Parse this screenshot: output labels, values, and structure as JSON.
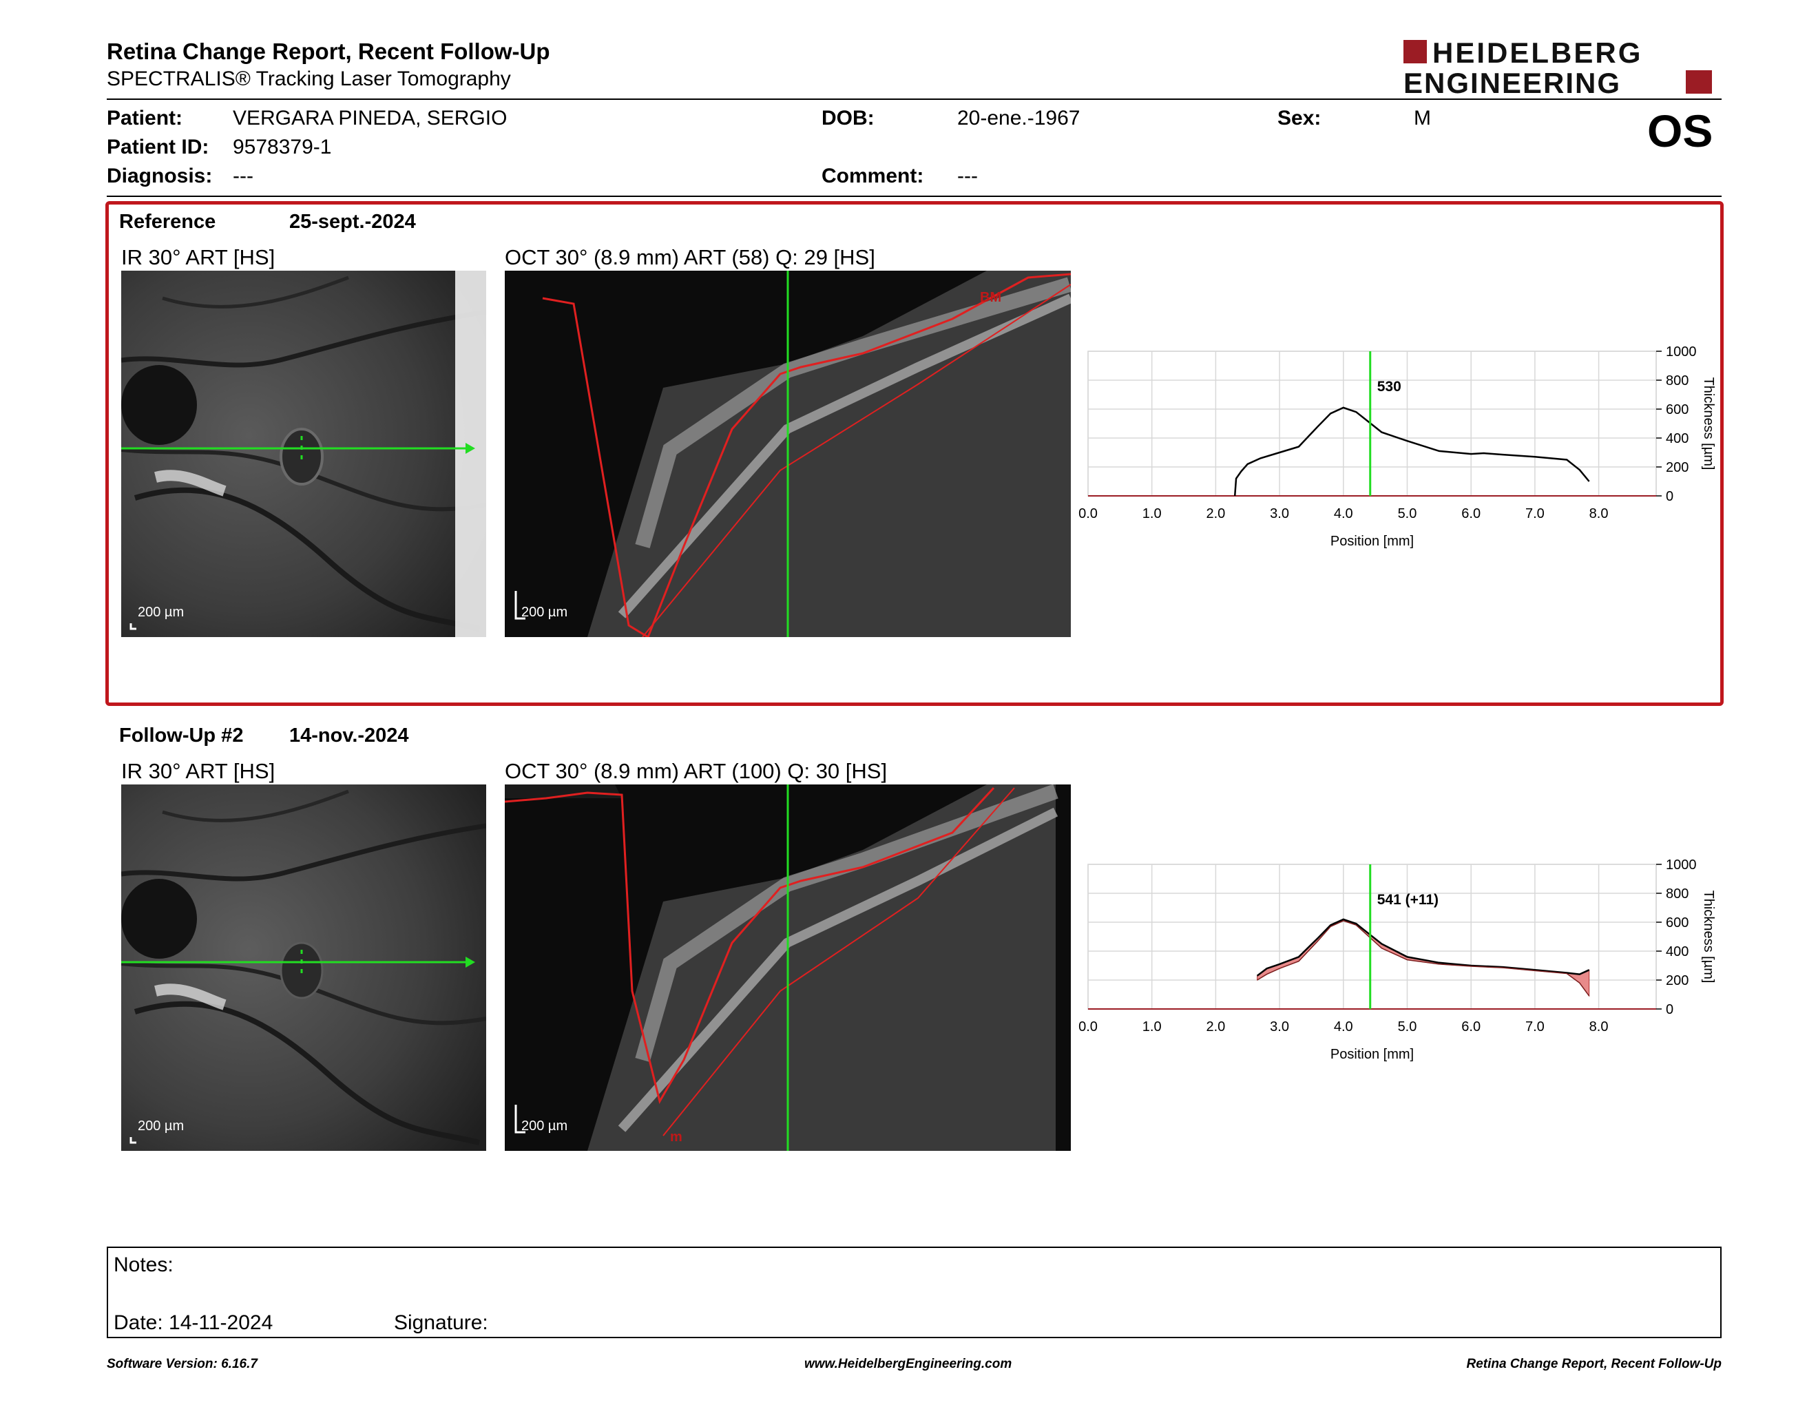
{
  "header": {
    "title": "Retina Change Report, Recent Follow-Up",
    "subtitle": "SPECTRALIS® Tracking Laser Tomography",
    "logo_line1": "HEIDELBERG",
    "logo_line2": "ENGINEERING",
    "eye": "OS"
  },
  "patient": {
    "name_label": "Patient:",
    "name": "VERGARA PINEDA, SERGIO",
    "id_label": "Patient ID:",
    "id": "9578379-1",
    "diagnosis_label": "Diagnosis:",
    "diagnosis": "---",
    "dob_label": "DOB:",
    "dob": "20-ene.-1967",
    "comment_label": "Comment:",
    "comment": "---",
    "sex_label": "Sex:",
    "sex": "M"
  },
  "reference": {
    "label": "Reference",
    "date": "25-sept.-2024",
    "ir_caption": "IR 30° ART [HS]",
    "oct_caption": "OCT 30° (8.9 mm) ART (58) Q: 29 [HS]",
    "ir_scale": "200 µm",
    "oct_scale": "200 µm",
    "oct_tag": "BM"
  },
  "followup": {
    "label": "Follow-Up #2",
    "date": "14-nov.-2024",
    "ir_caption": "IR 30° ART [HS]",
    "oct_caption": "OCT 30° (8.9 mm) ART (100) Q: 30 [HS]",
    "ir_scale": "200 µm",
    "oct_scale": "200 µm",
    "oct_tag": "m"
  },
  "colors": {
    "accent_red": "#c0171d",
    "cursor_green": "#22dd22",
    "segmentation_red": "#e02020",
    "difference_fill": "#e88a8a"
  },
  "chart_data": [
    {
      "type": "line",
      "xlabel": "Position [mm]",
      "ylabel": "Thickness [µm]",
      "xlim": [
        0,
        8.9
      ],
      "ylim": [
        0,
        1000
      ],
      "x_ticks": [
        "0.0",
        "1.0",
        "2.0",
        "3.0",
        "4.0",
        "5.0",
        "6.0",
        "7.0",
        "8.0"
      ],
      "y_ticks": [
        "0",
        "200",
        "400",
        "600",
        "800",
        "1000"
      ],
      "grid": true,
      "cursor_x": 4.42,
      "cursor_label": "530",
      "series": [
        {
          "x": [
            2.3,
            2.32,
            2.4,
            2.5,
            2.7,
            3.0,
            3.3,
            3.6,
            3.8,
            4.0,
            4.2,
            4.4,
            4.6,
            5.0,
            5.5,
            6.0,
            6.2,
            6.5,
            7.0,
            7.5,
            7.7,
            7.85
          ],
          "y": [
            0,
            120,
            170,
            220,
            260,
            300,
            340,
            480,
            570,
            610,
            580,
            510,
            440,
            380,
            310,
            290,
            295,
            285,
            270,
            250,
            180,
            100
          ]
        }
      ]
    },
    {
      "type": "area",
      "xlabel": "Position [mm]",
      "ylabel": "Thickness [µm]",
      "xlim": [
        0,
        8.9
      ],
      "ylim": [
        0,
        1000
      ],
      "x_ticks": [
        "0.0",
        "1.0",
        "2.0",
        "3.0",
        "4.0",
        "5.0",
        "6.0",
        "7.0",
        "8.0"
      ],
      "y_ticks": [
        "0",
        "200",
        "400",
        "600",
        "800",
        "1000"
      ],
      "grid": true,
      "cursor_x": 4.42,
      "cursor_label": "541 (+11)",
      "series": [
        {
          "x": [
            2.65,
            2.8,
            3.0,
            3.3,
            3.6,
            3.8,
            4.0,
            4.2,
            4.4,
            4.6,
            5.0,
            5.5,
            6.0,
            6.5,
            7.0,
            7.5,
            7.7,
            7.85
          ],
          "y": [
            230,
            280,
            310,
            360,
            490,
            580,
            620,
            590,
            520,
            450,
            360,
            320,
            300,
            290,
            270,
            250,
            240,
            270
          ]
        },
        {
          "x": [
            2.65,
            2.8,
            3.0,
            3.3,
            3.6,
            3.8,
            4.0,
            4.2,
            4.4,
            4.6,
            5.0,
            5.5,
            6.0,
            6.5,
            7.0,
            7.5,
            7.7,
            7.85
          ],
          "y": [
            200,
            240,
            280,
            330,
            470,
            570,
            610,
            580,
            500,
            420,
            340,
            310,
            295,
            285,
            265,
            245,
            180,
            90
          ]
        }
      ]
    }
  ],
  "notes": {
    "label": "Notes:",
    "date_text": "Date: 14-11-2024",
    "signature_label": "Signature:"
  },
  "footer": {
    "software": "Software Version: 6.16.7",
    "website": "www.HeidelbergEngineering.com",
    "report_name": "Retina Change Report, Recent Follow-Up"
  }
}
